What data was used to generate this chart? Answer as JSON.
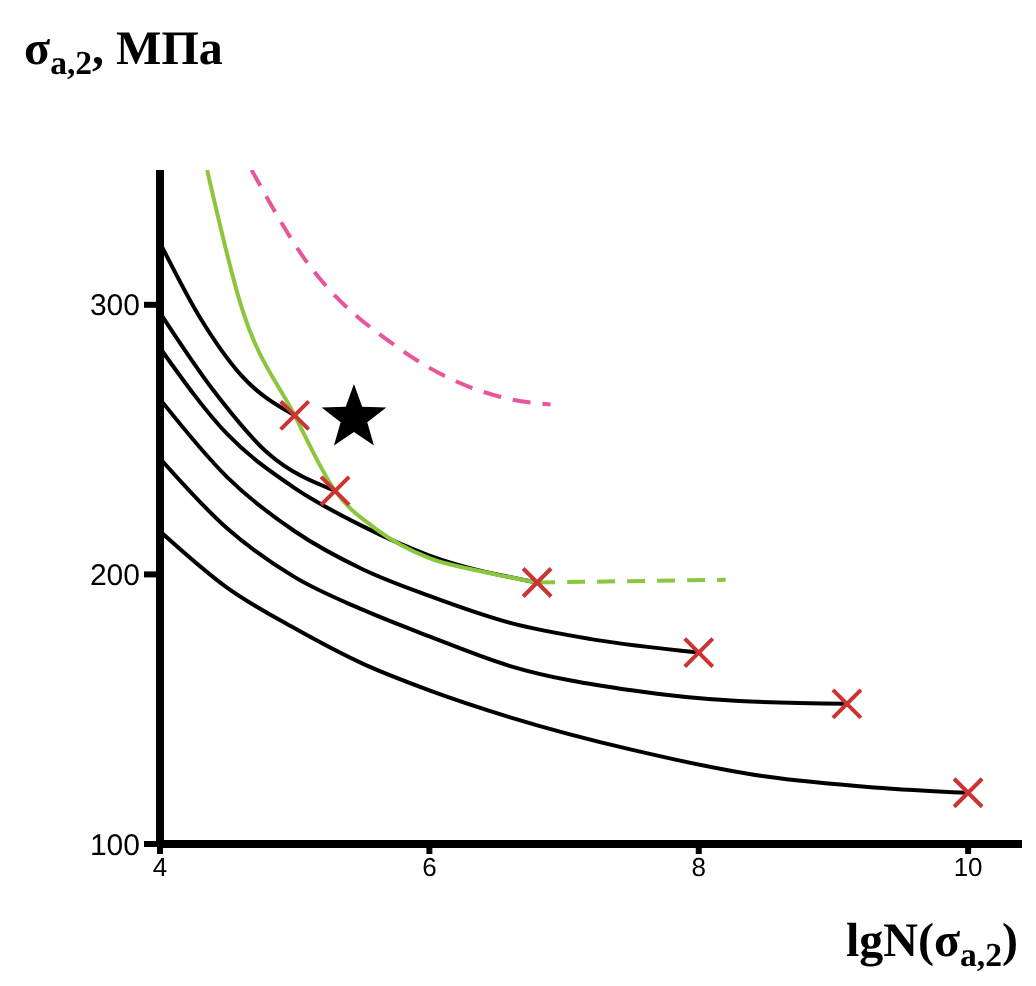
{
  "chart_data": {
    "type": "line",
    "xlabel": "lgN(σ$_{a,2}$)",
    "ylabel": "σ$_{a,2}$, МПа",
    "xlim": [
      4,
      10.4
    ],
    "xticks": [
      4,
      6,
      8,
      10
    ],
    "ylim": [
      100,
      350
    ],
    "yticks": [
      100,
      200,
      300
    ],
    "grid": false,
    "legend": false,
    "series": [
      {
        "color": "#000000",
        "x": [
          4,
          4.3,
          4.6,
          5.0
        ],
        "values": [
          323,
          295,
          274,
          259
        ]
      },
      {
        "color": "#000000",
        "x": [
          4,
          4.4,
          4.8,
          5.3
        ],
        "values": [
          297,
          268,
          245,
          231
        ]
      },
      {
        "color": "#000000",
        "x": [
          4,
          4.5,
          5,
          5.5,
          6,
          6.8
        ],
        "values": [
          284,
          252,
          232,
          218,
          207,
          197
        ]
      },
      {
        "color": "#000000",
        "x": [
          4,
          4.5,
          5,
          5.5,
          6,
          6.6,
          7.2,
          8
        ],
        "values": [
          265,
          236,
          216,
          202,
          192,
          182,
          176,
          171
        ]
      },
      {
        "color": "#000000",
        "x": [
          4,
          4.5,
          5,
          5.5,
          6,
          6.6,
          7.5,
          8.3,
          9.1
        ],
        "values": [
          243,
          217,
          199,
          187,
          177,
          166,
          157,
          153,
          152
        ]
      },
      {
        "color": "#000000",
        "x": [
          4,
          4.5,
          5,
          5.5,
          6,
          6.6,
          7.5,
          8.5,
          9.3,
          10
        ],
        "values": [
          216,
          195,
          180,
          167,
          157,
          147,
          135,
          125,
          121,
          119
        ]
      },
      {
        "color": "#8cc63f",
        "x": [
          4.35,
          4.6,
          5.0,
          5.3,
          5.6,
          6,
          6.4,
          6.8
        ],
        "values": [
          350,
          300,
          259,
          231,
          217,
          206,
          201,
          197
        ]
      },
      {
        "color": "#8cc63f",
        "line_style": "dashed",
        "x": [
          6.8,
          8.2
        ],
        "values": [
          197,
          198
        ]
      },
      {
        "color": "#e8559a",
        "line_style": "dashed",
        "x": [
          4.68,
          5.06,
          5.8,
          6.6,
          6.9
        ],
        "values": [
          350,
          318,
          283,
          265,
          263
        ]
      },
      {
        "type": "scatter",
        "color": "#cc3333",
        "marker": "cross",
        "x": [
          5.0,
          5.3,
          6.8,
          8.0,
          9.1,
          10.0
        ],
        "values": [
          259,
          231,
          197,
          171,
          152,
          119
        ]
      },
      {
        "type": "scatter",
        "color": "#000000",
        "marker": "star",
        "x": [
          5.44
        ],
        "values": [
          258
        ]
      }
    ]
  }
}
